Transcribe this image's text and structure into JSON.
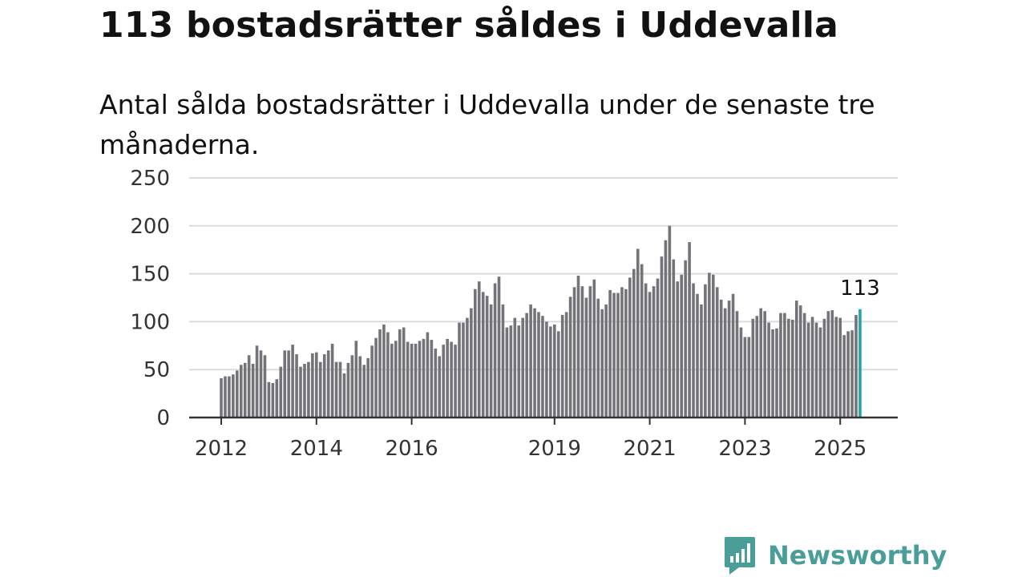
{
  "title": "113 bostadsrätter såldes i Uddevalla",
  "subtitle": "Antal sålda bostadsrätter i Uddevalla under de senaste tre månaderna.",
  "brand": {
    "name": "Newsworthy",
    "icon": "newsworthy-logo-icon",
    "color": "#4a9e9a"
  },
  "chart_data": {
    "type": "bar",
    "x_unit": "month",
    "start": "2012-01",
    "end": "2025-06",
    "values": [
      41,
      43,
      43,
      45,
      49,
      55,
      57,
      65,
      56,
      75,
      70,
      65,
      37,
      36,
      40,
      53,
      70,
      70,
      76,
      66,
      53,
      56,
      58,
      67,
      68,
      58,
      66,
      70,
      77,
      58,
      58,
      46,
      57,
      65,
      80,
      64,
      55,
      62,
      75,
      83,
      92,
      97,
      89,
      77,
      80,
      92,
      94,
      79,
      77,
      77,
      80,
      82,
      89,
      81,
      72,
      64,
      76,
      82,
      79,
      76,
      99,
      99,
      104,
      114,
      134,
      142,
      131,
      127,
      118,
      140,
      147,
      118,
      94,
      96,
      104,
      96,
      104,
      109,
      118,
      114,
      110,
      106,
      100,
      95,
      97,
      90,
      107,
      110,
      126,
      136,
      148,
      137,
      125,
      137,
      144,
      124,
      113,
      118,
      133,
      130,
      130,
      136,
      134,
      146,
      155,
      176,
      160,
      140,
      131,
      137,
      145,
      168,
      185,
      200,
      165,
      142,
      149,
      164,
      183,
      140,
      129,
      118,
      139,
      151,
      149,
      136,
      123,
      114,
      122,
      129,
      111,
      94,
      84,
      84,
      103,
      106,
      114,
      111,
      99,
      92,
      93,
      109,
      109,
      103,
      102,
      122,
      117,
      109,
      99,
      105,
      99,
      94,
      103,
      111,
      112,
      105,
      104,
      86,
      90,
      91,
      107,
      113
    ],
    "ylim": [
      0,
      250
    ],
    "yticks": [
      0,
      50,
      100,
      150,
      200,
      250
    ],
    "xticks": [
      {
        "label": "2012",
        "date": "2012-01"
      },
      {
        "label": "2014",
        "date": "2014-01"
      },
      {
        "label": "2016",
        "date": "2016-01"
      },
      {
        "label": "2019",
        "date": "2019-01"
      },
      {
        "label": "2021",
        "date": "2021-01"
      },
      {
        "label": "2023",
        "date": "2023-01"
      },
      {
        "label": "2025",
        "date": "2025-01"
      }
    ],
    "highlight": {
      "value": 113,
      "label": "113"
    },
    "colors": {
      "bar": "#74737a",
      "highlight": "#1fa7a8",
      "grid": "#dcdcdc",
      "axis": "#333333"
    },
    "grid": true,
    "legend": "none"
  }
}
